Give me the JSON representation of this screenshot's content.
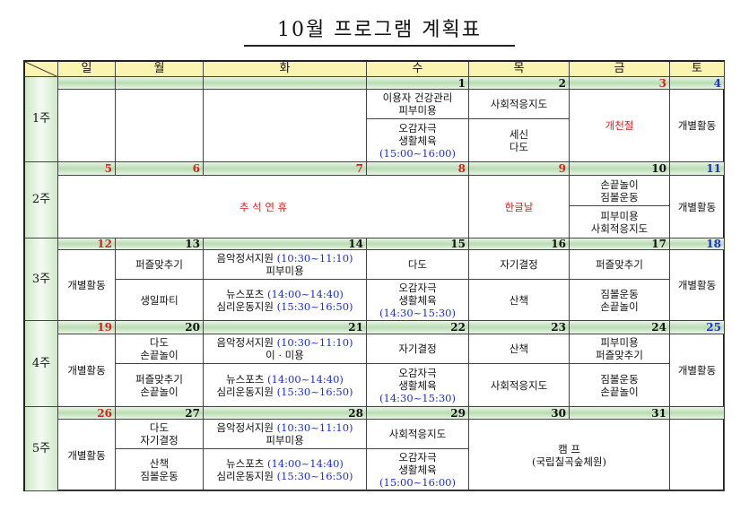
{
  "title": "10월 프로그램 계획표",
  "colors": {
    "holiday": "#d82020",
    "saturday": "#1f2fc8",
    "time": "#1f2fc8",
    "header_bg": "#fbf4b0",
    "date_bar": "#b9dcb2"
  },
  "days": [
    "일",
    "월",
    "화",
    "수",
    "목",
    "금",
    "토"
  ],
  "weeks": [
    {
      "label": "1주",
      "days": [
        {
          "date": ""
        },
        {
          "date": ""
        },
        {
          "date": ""
        },
        {
          "date": "1",
          "top": [
            {
              "t": "이용자 건강관리"
            },
            {
              "t": "피부미용"
            }
          ],
          "bottom": [
            {
              "t": "오감자극"
            },
            {
              "t": "생활체육"
            },
            {
              "time": "(15:00~16:00)"
            }
          ]
        },
        {
          "date": "2",
          "top": [
            {
              "t": "사회적응지도"
            }
          ],
          "bottom": [
            {
              "t": "세신"
            },
            {
              "t": "다도"
            }
          ]
        },
        {
          "date": "3",
          "date_color": "red",
          "full": [
            {
              "t": "개천절",
              "color": "red"
            }
          ]
        },
        {
          "date": "4",
          "date_color": "blue",
          "full": [
            {
              "t": "개별활동"
            }
          ]
        }
      ]
    },
    {
      "label": "2주",
      "days": [
        {
          "date": "5",
          "date_color": "red",
          "full": [
            {
              "t": "추 석 연 휴",
              "color": "red"
            }
          ]
        },
        {
          "date": "6",
          "date_color": "red"
        },
        {
          "date": "7",
          "date_color": "red"
        },
        {
          "date": "8",
          "date_color": "red"
        },
        {
          "date": "9",
          "date_color": "red",
          "full": [
            {
              "t": "한글날",
              "color": "red"
            }
          ]
        },
        {
          "date": "10",
          "top": [
            {
              "t": "손끝놀이"
            },
            {
              "t": "짐볼운동"
            }
          ],
          "bottom": [
            {
              "t": "피부미용"
            },
            {
              "t": "사회적응지도"
            }
          ]
        },
        {
          "date": "11",
          "date_color": "blue",
          "full": [
            {
              "t": "개별활동"
            }
          ]
        }
      ]
    },
    {
      "label": "3주",
      "days": [
        {
          "date": "12",
          "date_color": "red",
          "full": [
            {
              "t": "개별활동"
            }
          ]
        },
        {
          "date": "13",
          "top": [
            {
              "t": "퍼즐맞추기"
            }
          ],
          "bottom": [
            {
              "t": "생일파티"
            }
          ]
        },
        {
          "date": "14",
          "top": [
            {
              "t": "음악정서지원 ",
              "time": "(10:30~11:10)"
            },
            {
              "t": "피부미용"
            }
          ],
          "bottom": [
            {
              "t": "뉴스포츠 ",
              "time": "(14:00~14:40)"
            },
            {
              "t": "심리운동지원 ",
              "time": "(15:30~16:50)"
            }
          ]
        },
        {
          "date": "15",
          "top": [
            {
              "t": "다도"
            }
          ],
          "bottom": [
            {
              "t": "오감자극"
            },
            {
              "t": "생활체육"
            },
            {
              "time": "(14:30~15:30)"
            }
          ]
        },
        {
          "date": "16",
          "top": [
            {
              "t": "자기결정"
            }
          ],
          "bottom": [
            {
              "t": "산책"
            }
          ]
        },
        {
          "date": "17",
          "top": [
            {
              "t": "퍼즐맞추기"
            }
          ],
          "bottom": [
            {
              "t": "짐볼운동"
            },
            {
              "t": "손끝놀이"
            }
          ]
        },
        {
          "date": "18",
          "date_color": "blue",
          "full": [
            {
              "t": "개별활동"
            }
          ]
        }
      ]
    },
    {
      "label": "4주",
      "days": [
        {
          "date": "19",
          "date_color": "red",
          "full": [
            {
              "t": "개별활동"
            }
          ]
        },
        {
          "date": "20",
          "top": [
            {
              "t": "다도"
            },
            {
              "t": "손끝놀이"
            }
          ],
          "bottom": [
            {
              "t": "퍼즐맞추기"
            },
            {
              "t": "손끝놀이"
            }
          ]
        },
        {
          "date": "21",
          "top": [
            {
              "t": "음악정서지원 ",
              "time": "(10:30~11:10)"
            },
            {
              "t": "이 · 미용"
            }
          ],
          "bottom": [
            {
              "t": "뉴스포츠 ",
              "time": "(14:00~14:40)"
            },
            {
              "t": "심리운동지원 ",
              "time": "(15:30~16:50)"
            }
          ]
        },
        {
          "date": "22",
          "top": [
            {
              "t": "자기결정"
            }
          ],
          "bottom": [
            {
              "t": "오감자극"
            },
            {
              "t": "생활체육"
            },
            {
              "time": "(14:30~15:30)"
            }
          ]
        },
        {
          "date": "23",
          "top": [
            {
              "t": "산책"
            }
          ],
          "bottom": [
            {
              "t": "사회적응지도"
            }
          ]
        },
        {
          "date": "24",
          "top": [
            {
              "t": "피부미용"
            },
            {
              "t": "퍼즐맞추기"
            }
          ],
          "bottom": [
            {
              "t": "짐볼운동"
            },
            {
              "t": "손끝놀이"
            }
          ]
        },
        {
          "date": "25",
          "date_color": "blue",
          "full": [
            {
              "t": "개별활동"
            }
          ]
        }
      ]
    },
    {
      "label": "5주",
      "days": [
        {
          "date": "26",
          "date_color": "red",
          "full": [
            {
              "t": "개별활동"
            }
          ]
        },
        {
          "date": "27",
          "top": [
            {
              "t": "다도"
            },
            {
              "t": "자기결정"
            }
          ],
          "bottom": [
            {
              "t": "산책"
            },
            {
              "t": "짐볼운동"
            }
          ]
        },
        {
          "date": "28",
          "top": [
            {
              "t": "음악정서지원 ",
              "time": "(10:30~11:10)"
            },
            {
              "t": "피부미용"
            }
          ],
          "bottom": [
            {
              "t": "뉴스포츠 ",
              "time": "(14:00~14:40)"
            },
            {
              "t": "심리운동지원 ",
              "time": "(15:30~16:50)"
            }
          ]
        },
        {
          "date": "29",
          "top": [
            {
              "t": "사회적응지도"
            }
          ],
          "bottom": [
            {
              "t": "오감자극"
            },
            {
              "t": "생활체육"
            },
            {
              "time": "(15:00~16:00)"
            }
          ]
        },
        {
          "date": "30",
          "full": [
            {
              "t": "캠  프"
            },
            {
              "t": "(국립칠곡숲체원)"
            }
          ]
        },
        {
          "date": "31"
        },
        {
          "date": "",
          "full": []
        }
      ]
    }
  ]
}
